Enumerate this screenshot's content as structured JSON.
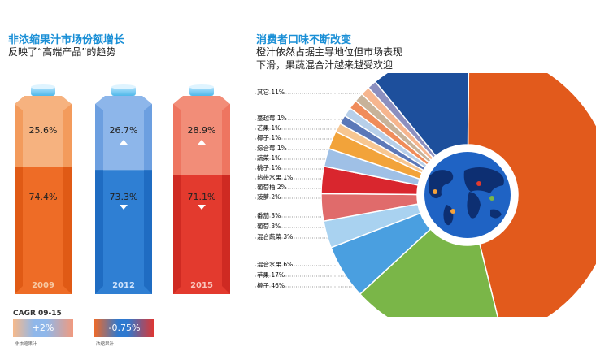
{
  "left_panel": {
    "title": "非浓缩果汁市场份额增长",
    "subtitle": "反映了“高端产品”的趋势",
    "cartons": [
      {
        "year": "2009",
        "top_label": "25.6%",
        "bottom_label": "74.4%",
        "theme": "orange"
      },
      {
        "year": "2012",
        "top_label": "26.7%",
        "bottom_label": "73.3%",
        "theme": "blue"
      },
      {
        "year": "2015",
        "top_label": "28.9%",
        "bottom_label": "71.1%",
        "theme": "red"
      }
    ],
    "cagr": {
      "title": "CAGR 09-15",
      "items": [
        {
          "value": "+2%",
          "legend": "非浓缩果汁"
        },
        {
          "value": "-0.75%",
          "legend": "浓缩果汁"
        }
      ]
    }
  },
  "right_panel": {
    "title": "消费者口味不断改变",
    "subtitle_line1": "橙汁依然占据主导地位但市场表现",
    "subtitle_line2": "下滑，果蔬混合汁越来越受欢迎"
  },
  "chart_data": [
    {
      "type": "bar",
      "title": "非浓缩果汁市场份额增长",
      "categories": [
        "2009",
        "2012",
        "2015"
      ],
      "series": [
        {
          "values": [
            25.6,
            26.7,
            28.9
          ]
        },
        {
          "values": [
            74.4,
            73.3,
            71.1
          ]
        }
      ],
      "stacked": true,
      "ylim": [
        0,
        100
      ],
      "unit": "%"
    },
    {
      "type": "pie",
      "title": "消费者口味不断改变",
      "donut": true,
      "labels": [
        "橙子",
        "苹果",
        "混合水果",
        "混合蔬菜",
        "葡萄",
        "番茄",
        "菠萝",
        "葡萄柚",
        "热带水果",
        "桃子",
        "蔬菜",
        "综合莓",
        "椰子",
        "芒果",
        "蔓越莓",
        "其它"
      ],
      "display_labels": [
        "橙子 46%",
        "苹果 17%",
        "混合水果 6%",
        "混合蔬菜 3%",
        "葡萄 3%",
        "番茄 3%",
        "菠萝 2%",
        "葡萄柚 2%",
        "热带水果 1%",
        "桃子 1%",
        "蔬菜 1%",
        "综合莓 1%",
        "椰子 1%",
        "芒果 1%",
        "蔓越莓 1%",
        "其它 11%"
      ],
      "values": [
        46,
        17,
        6,
        3,
        3,
        3,
        2,
        2,
        1,
        1,
        1,
        1,
        1,
        1,
        1,
        11
      ],
      "colors": [
        "#e25a1c",
        "#7ab648",
        "#4a9fe0",
        "#a9d2f0",
        "#e06b6b",
        "#d9262e",
        "#9fc0e6",
        "#f2a33a",
        "#f7c691",
        "#5b78b8",
        "#b7cfe9",
        "#f08c5a",
        "#c7b299",
        "#f6b58e",
        "#8c8fbf",
        "#1d4f9c"
      ]
    }
  ]
}
